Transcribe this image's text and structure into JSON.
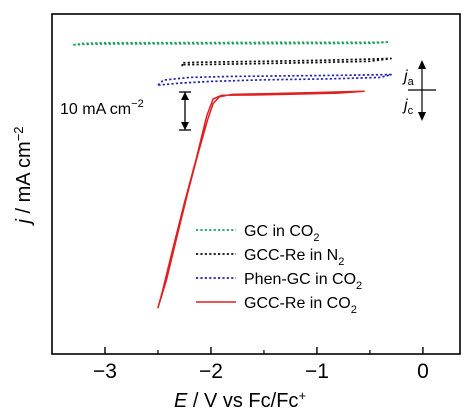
{
  "chart_data": {
    "type": "line",
    "xlabel": {
      "symbol": "E",
      "rest": " / V vs Fc/Fc",
      "sup": "+"
    },
    "ylabel": {
      "symbol": "j",
      "rest": " / mA cm",
      "sup": "−2"
    },
    "xlim": [
      -3.5,
      0.35
    ],
    "ylim": [
      -100,
      10
    ],
    "xticks": [
      -3,
      -2,
      -1,
      0
    ],
    "xtick_labels": [
      "−3",
      "−2",
      "−1",
      "0"
    ],
    "yticks_labeled": false,
    "grid": false,
    "legend_position": "bottom-right",
    "series": [
      {
        "name": "GC in CO",
        "name_sub": "2",
        "color": "#1aa05a",
        "style": "dotted",
        "points": [
          [
            -3.3,
            0.0
          ],
          [
            -3.2,
            0.5
          ],
          [
            -3.0,
            0.65
          ],
          [
            -2.5,
            0.7
          ],
          [
            -2.0,
            0.75
          ],
          [
            -1.5,
            0.8
          ],
          [
            -1.0,
            0.85
          ],
          [
            -0.5,
            0.85
          ],
          [
            -0.32,
            0.9
          ],
          [
            -0.5,
            0.5
          ],
          [
            -1.0,
            0.45
          ],
          [
            -1.5,
            0.4
          ],
          [
            -2.0,
            0.4
          ],
          [
            -2.5,
            0.35
          ],
          [
            -3.0,
            0.3
          ],
          [
            -3.2,
            0.2
          ],
          [
            -3.3,
            0.0
          ]
        ]
      },
      {
        "name": "GCC-Re in N",
        "name_sub": "2",
        "color": "#111111",
        "style": "dotted",
        "points": [
          [
            -2.27,
            -6.9
          ],
          [
            -2.27,
            -5.8
          ],
          [
            -2.1,
            -5.6
          ],
          [
            -1.5,
            -5.3
          ],
          [
            -1.0,
            -5.0
          ],
          [
            -0.5,
            -4.6
          ],
          [
            -0.3,
            -4.4
          ],
          [
            -0.5,
            -5.3
          ],
          [
            -1.0,
            -5.7
          ],
          [
            -1.5,
            -6.0
          ],
          [
            -2.0,
            -6.3
          ],
          [
            -2.27,
            -6.4
          ]
        ]
      },
      {
        "name": "Phen-GC in CO",
        "name_sub": "2",
        "color": "#2222aa",
        "style": "dotted",
        "points": [
          [
            -2.5,
            -13.0
          ],
          [
            -2.45,
            -11.4
          ],
          [
            -2.2,
            -10.5
          ],
          [
            -1.8,
            -10.2
          ],
          [
            -1.2,
            -10.0
          ],
          [
            -0.7,
            -9.8
          ],
          [
            -0.3,
            -9.6
          ],
          [
            -0.4,
            -10.5
          ],
          [
            -0.9,
            -11.0
          ],
          [
            -1.5,
            -11.3
          ],
          [
            -2.0,
            -11.8
          ],
          [
            -2.3,
            -12.4
          ],
          [
            -2.5,
            -13.0
          ]
        ]
      },
      {
        "name": "GCC-Re in CO",
        "name_sub": "2",
        "color": "#e02020",
        "style": "solid",
        "points": [
          [
            -0.55,
            -15.0
          ],
          [
            -0.7,
            -15.1
          ],
          [
            -1.0,
            -15.4
          ],
          [
            -1.5,
            -15.8
          ],
          [
            -1.8,
            -16.0
          ],
          [
            -1.92,
            -16.8
          ],
          [
            -1.98,
            -19.0
          ],
          [
            -2.03,
            -24.0
          ],
          [
            -2.12,
            -35.0
          ],
          [
            -2.22,
            -48.0
          ],
          [
            -2.32,
            -62.0
          ],
          [
            -2.42,
            -76.0
          ],
          [
            -2.5,
            -85.0
          ],
          [
            -2.46,
            -80.0
          ],
          [
            -2.36,
            -66.0
          ],
          [
            -2.25,
            -51.0
          ],
          [
            -2.14,
            -37.0
          ],
          [
            -2.04,
            -23.0
          ],
          [
            -1.98,
            -17.5
          ],
          [
            -1.9,
            -16.3
          ],
          [
            -1.6,
            -16.2
          ],
          [
            -1.2,
            -15.9
          ],
          [
            -0.8,
            -15.6
          ],
          [
            -0.55,
            -15.0
          ]
        ]
      }
    ],
    "annotations": {
      "scale_bar": {
        "value": 10,
        "label": "10 mA cm",
        "label_sup": "−2"
      },
      "direction": {
        "anodic": "j",
        "anodic_sub": "a",
        "cathodic": "j",
        "cathodic_sub": "c"
      }
    }
  }
}
